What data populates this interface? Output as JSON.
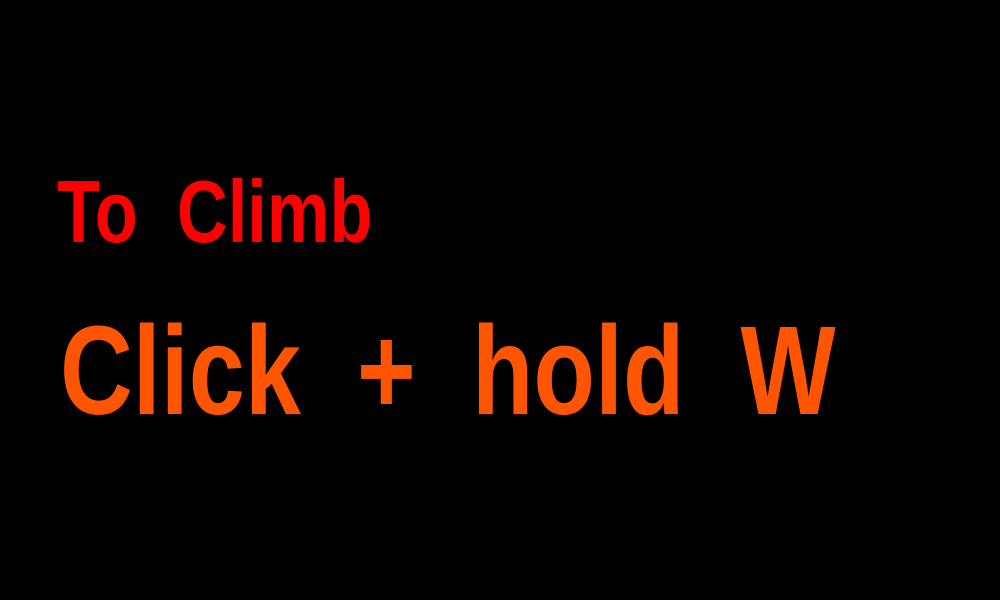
{
  "instructions": {
    "line1": "To  Climb",
    "line2": "Click  +  hold  W"
  },
  "colors": {
    "background": "#000000",
    "line1": "#ff0000",
    "line2": "#ff5500"
  }
}
